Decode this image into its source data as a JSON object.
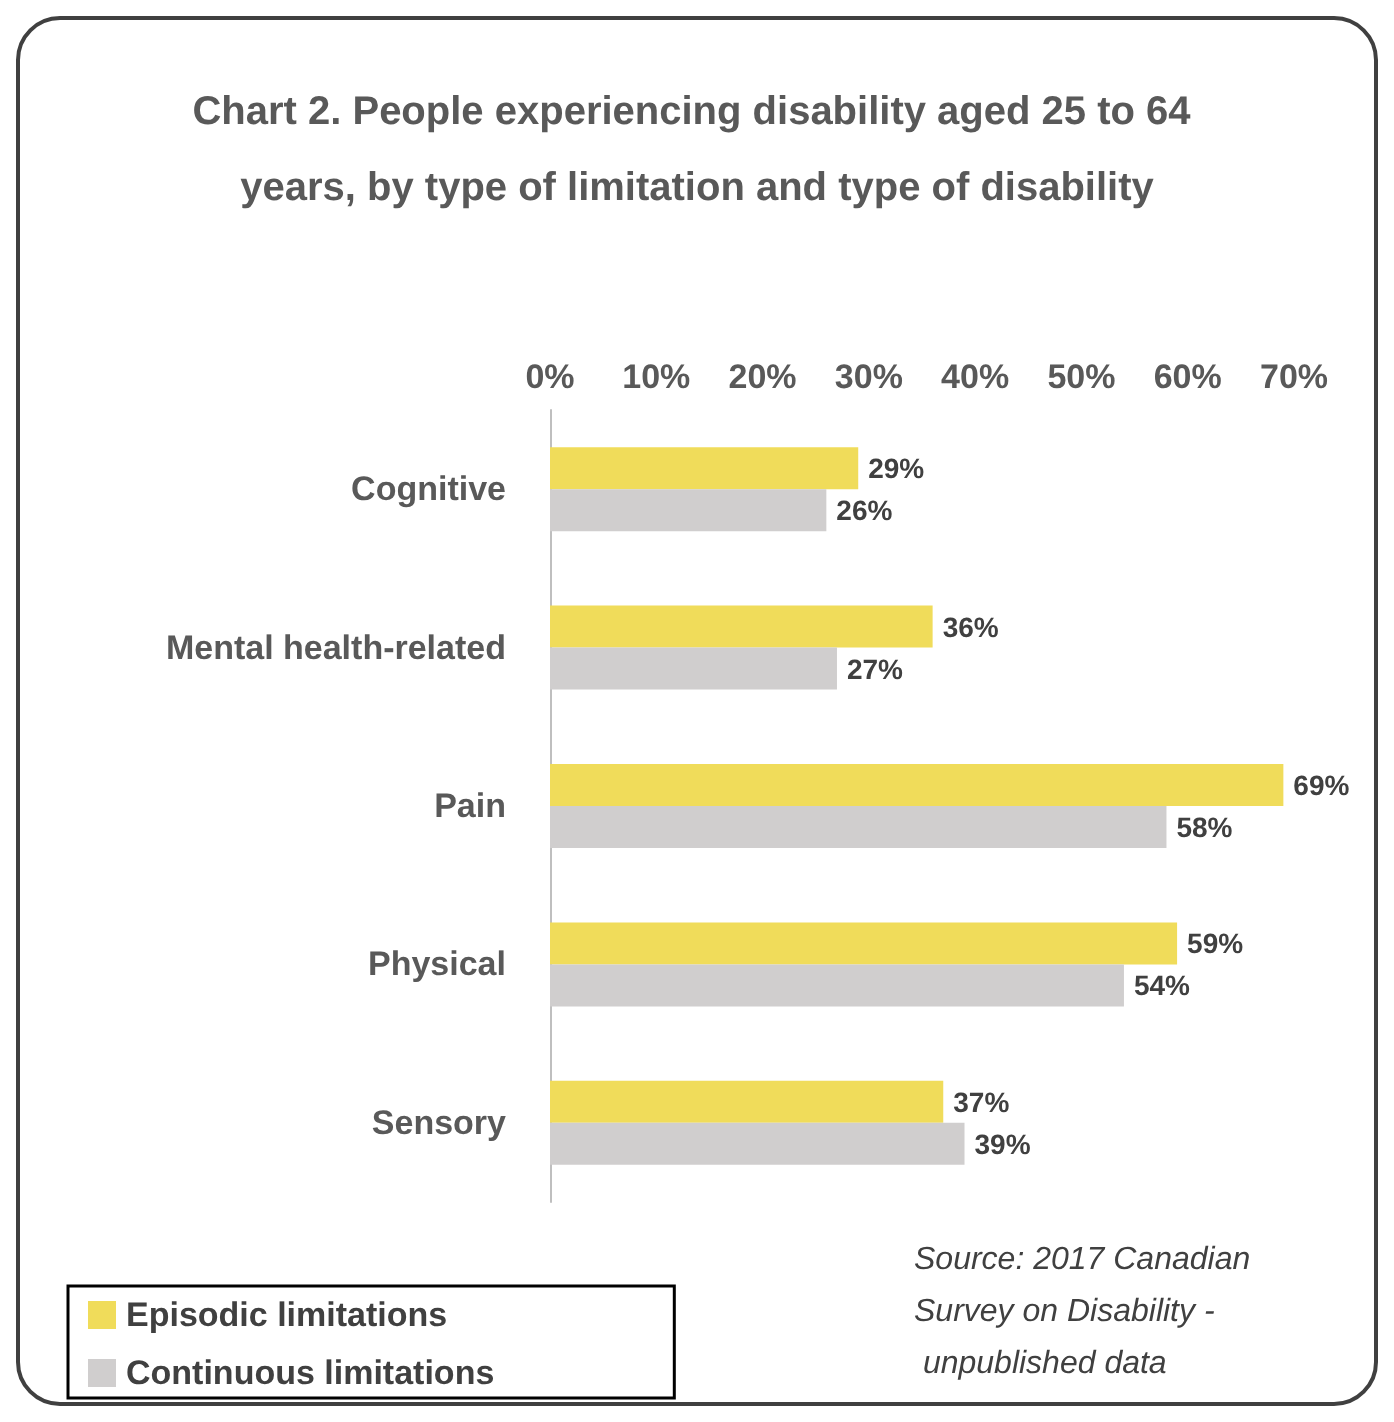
{
  "chart_data": {
    "type": "bar",
    "orientation": "horizontal",
    "title": "Chart 2. People experiencing disability aged 25 to 64 years, by type of limitation and type of disability",
    "categories": [
      "Cognitive",
      "Mental health-related",
      "Pain",
      "Physical",
      "Sensory"
    ],
    "series": [
      {
        "name": "Episodic limitations",
        "color": "#f0dc5a",
        "values": [
          29,
          36,
          69,
          59,
          37
        ],
        "value_labels": [
          "29%",
          "36%",
          "69%",
          "59%",
          "37%"
        ]
      },
      {
        "name": "Continuous limitations",
        "color": "#d0cece",
        "values": [
          26,
          27,
          58,
          54,
          39
        ],
        "value_labels": [
          "26%",
          "27%",
          "58%",
          "54%",
          "39%"
        ]
      }
    ],
    "xlim": [
      0,
      70
    ],
    "xticks": [
      {
        "value": 0,
        "label": "0%"
      },
      {
        "value": 10,
        "label": "10%"
      },
      {
        "value": 20,
        "label": "20%"
      },
      {
        "value": 30,
        "label": "30%"
      },
      {
        "value": 40,
        "label": "40%"
      },
      {
        "value": 50,
        "label": "50%"
      },
      {
        "value": 60,
        "label": "60%"
      },
      {
        "value": 70,
        "label": "70%"
      }
    ],
    "grid": false,
    "legend": "bottom left",
    "annotations": [
      "Source: 2017 Canadian Survey on Disability - unpublished data"
    ]
  }
}
